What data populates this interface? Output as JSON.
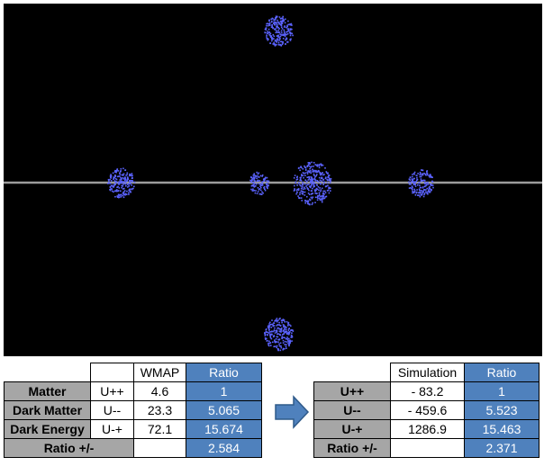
{
  "visualization": {
    "background_color": "#000000",
    "horizontal_line_color": "#9c9c9c",
    "particle_color": "#5b63ff",
    "clusters": [
      {
        "name": "cluster-top"
      },
      {
        "name": "cluster-left"
      },
      {
        "name": "cluster-center-small"
      },
      {
        "name": "cluster-center-large"
      },
      {
        "name": "cluster-right"
      },
      {
        "name": "cluster-bottom"
      }
    ]
  },
  "left_table": {
    "header": [
      "",
      "",
      "WMAP",
      "Ratio"
    ],
    "rows": [
      {
        "label": "Matter",
        "code": "U++",
        "value": "4.6",
        "ratio": "1"
      },
      {
        "label": "Dark Matter",
        "code": "U--",
        "value": "23.3",
        "ratio": "5.065"
      },
      {
        "label": "Dark Energy",
        "code": "U-+",
        "value": "72.1",
        "ratio": "15.674"
      }
    ],
    "footer": {
      "label": "Ratio +/-",
      "value": "",
      "ratio": "2.584"
    }
  },
  "arrow": {
    "icon": "arrow-right-icon",
    "color": "#4f81bd"
  },
  "right_table": {
    "header": [
      "",
      "Simulation",
      "Ratio"
    ],
    "rows": [
      {
        "code": "U++",
        "value": "- 83.2",
        "ratio": "1"
      },
      {
        "code": "U--",
        "value": "- 459.6",
        "ratio": "5.523"
      },
      {
        "code": "U-+",
        "value": "1286.9",
        "ratio": "15.463"
      }
    ],
    "footer": {
      "label": "Ratio +/-",
      "value": "",
      "ratio": "2.371"
    }
  },
  "colors": {
    "label_gray": "#a6a6a6",
    "ratio_blue": "#4f81bd"
  }
}
